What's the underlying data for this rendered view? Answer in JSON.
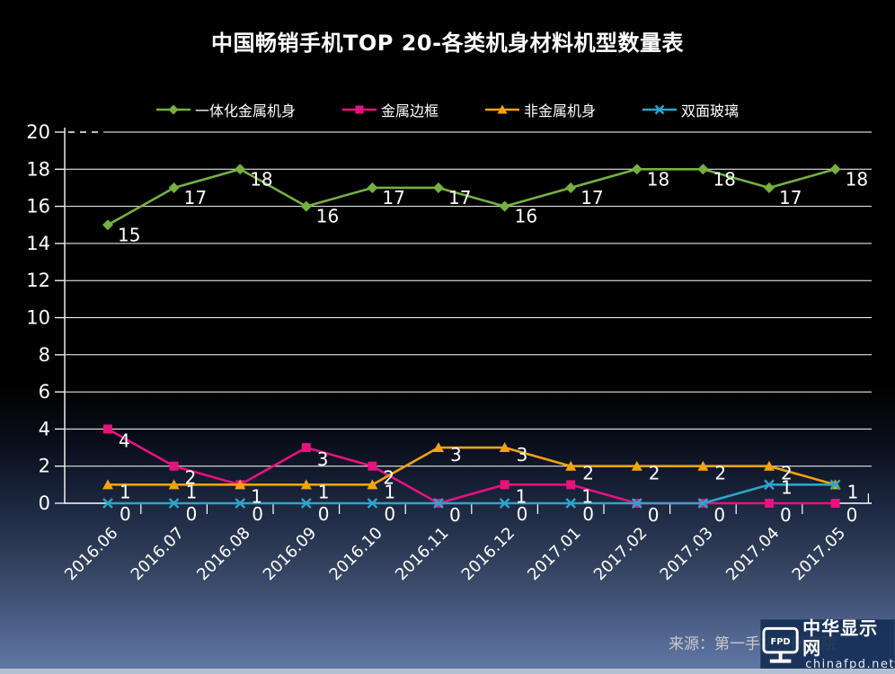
{
  "title": "中国畅销手机TOP 20-各类机身材料机型数量表",
  "source": "来源：第一手机界研究院",
  "watermark": {
    "site_name": "中华显示网",
    "site_url": "chinafpd.net",
    "icon_label": "FPD"
  },
  "chart_data": {
    "type": "line",
    "title": "中国畅销手机TOP 20-各类机身材料机型数量表",
    "categories": [
      "2016.06",
      "2016.07",
      "2016.08",
      "2016.09",
      "2016.10",
      "2016.11",
      "2016.12",
      "2017.01",
      "2017.02",
      "2017.03",
      "2017.04",
      "2017.05"
    ],
    "series": [
      {
        "name": "一体化金属机身",
        "marker": "diamond",
        "color": "#76B041",
        "values": [
          15,
          17,
          18,
          16,
          17,
          17,
          16,
          17,
          18,
          18,
          17,
          18
        ]
      },
      {
        "name": "金属边框",
        "marker": "square",
        "color": "#E6127E",
        "values": [
          4,
          2,
          1,
          3,
          2,
          0,
          1,
          1,
          0,
          0,
          0,
          0
        ]
      },
      {
        "name": "非金属机身",
        "marker": "triangle",
        "color": "#F2A30E",
        "values": [
          1,
          1,
          1,
          1,
          1,
          3,
          3,
          2,
          2,
          2,
          2,
          1
        ]
      },
      {
        "name": "双面玻璃",
        "marker": "x",
        "color": "#2BA6C9",
        "values": [
          0,
          0,
          0,
          0,
          0,
          0,
          0,
          0,
          0,
          0,
          1,
          1
        ]
      }
    ],
    "ylim": [
      0,
      20
    ],
    "y_ticks": [
      0,
      2,
      4,
      6,
      8,
      10,
      12,
      14,
      16,
      18,
      20
    ],
    "x_tick_rotation": 45,
    "grid": true,
    "grid_color": "#ffffff",
    "axis_color": "#ffffff",
    "label_color": "#ffffff",
    "data_labels": true,
    "legend_position": "top"
  }
}
